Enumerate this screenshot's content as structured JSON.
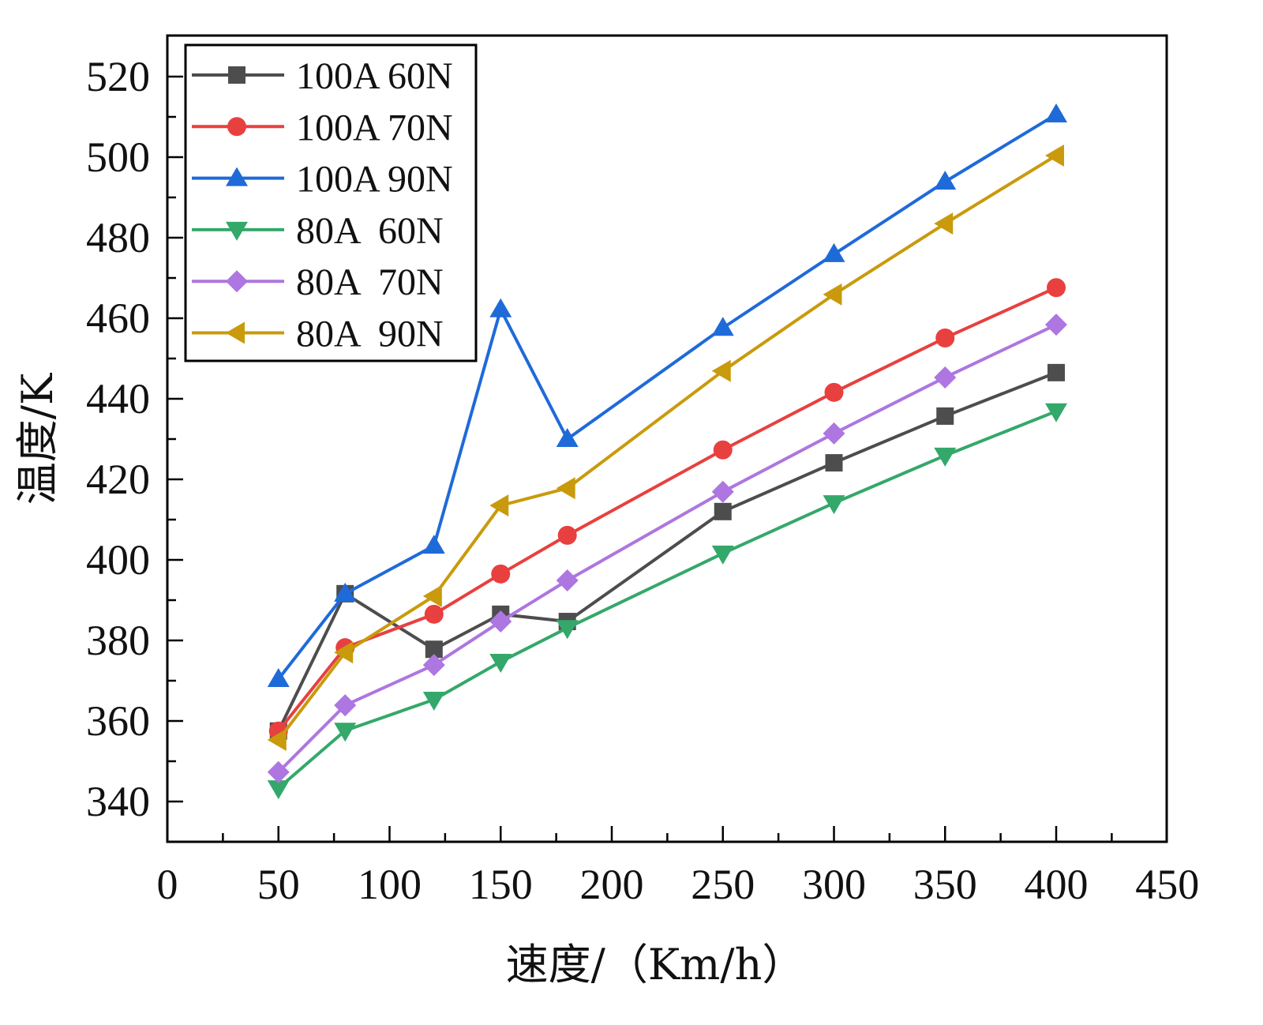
{
  "chart_data": {
    "type": "line",
    "title": "",
    "xlabel": "速度/（Km/h）",
    "ylabel": "温度/K",
    "xlim": [
      0,
      450
    ],
    "ylim": [
      330,
      530
    ],
    "x_ticks": [
      0,
      50,
      100,
      150,
      200,
      250,
      300,
      350,
      400,
      450
    ],
    "y_ticks": [
      340,
      360,
      380,
      400,
      420,
      440,
      460,
      480,
      500,
      520
    ],
    "x_minor_step": 25,
    "y_minor_step": 10,
    "grid": false,
    "legend_position": "top-left",
    "x": [
      50,
      80,
      120,
      150,
      180,
      250,
      300,
      350,
      400
    ],
    "series": [
      {
        "name": "100A 60N",
        "color": "#4d4d4d",
        "marker": "square",
        "values": [
          357.5,
          391.6,
          377.8,
          386.5,
          384.7,
          412.0,
          424.1,
          435.7,
          446.5
        ]
      },
      {
        "name": "100A 70N",
        "color": "#e8403f",
        "marker": "circle",
        "values": [
          357.5,
          378.2,
          386.5,
          396.5,
          406.1,
          427.3,
          441.6,
          455.1,
          467.6
        ]
      },
      {
        "name": "100A 90N",
        "color": "#1f6ad9",
        "marker": "triangle-up",
        "values": [
          370.4,
          391.6,
          403.5,
          462.2,
          430.0,
          457.6,
          475.9,
          493.9,
          510.6
        ]
      },
      {
        "name": "80A  60N",
        "color": "#34a86a",
        "marker": "triangle-down",
        "values": [
          343.3,
          357.6,
          365.3,
          374.7,
          383.1,
          401.6,
          414.1,
          425.9,
          436.9
        ]
      },
      {
        "name": "80A  70N",
        "color": "#ad76e0",
        "marker": "diamond",
        "values": [
          347.3,
          363.9,
          373.9,
          384.7,
          394.9,
          416.9,
          431.4,
          445.3,
          458.4
        ]
      },
      {
        "name": "80A  90N",
        "color": "#c99a0c",
        "marker": "triangle-left",
        "values": [
          355.3,
          377.0,
          391.0,
          413.5,
          417.8,
          446.9,
          465.9,
          483.5,
          500.4
        ]
      }
    ]
  }
}
